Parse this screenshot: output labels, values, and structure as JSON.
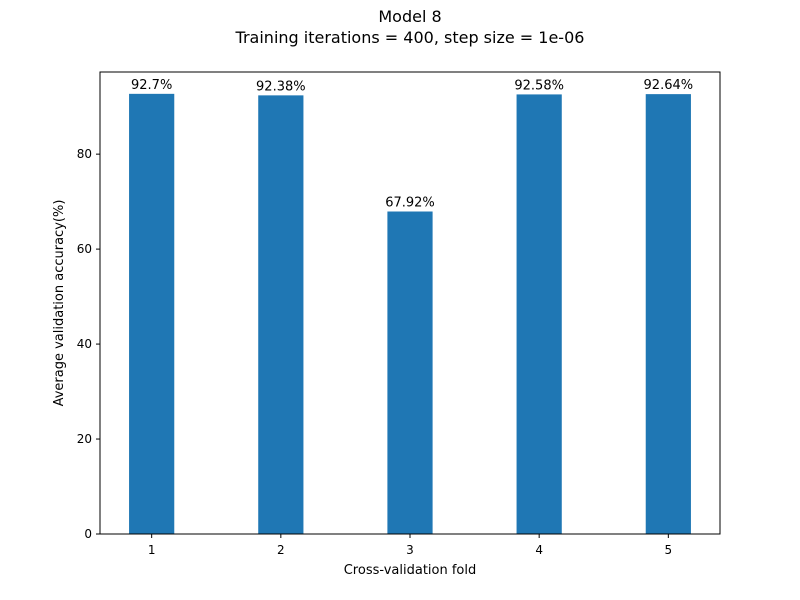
{
  "chart_data": {
    "type": "bar",
    "title": "Model 8",
    "subtitle": "Training iterations = 400, step size = 1e-06",
    "xlabel": "Cross-validation fold",
    "ylabel": "Average validation accuracy(%)",
    "categories": [
      "1",
      "2",
      "3",
      "4",
      "5"
    ],
    "values": [
      92.7,
      92.38,
      67.92,
      92.58,
      92.64
    ],
    "data_labels": [
      "92.7%",
      "92.38%",
      "67.92%",
      "92.58%",
      "92.64%"
    ],
    "ylim": [
      0,
      97.3
    ],
    "yticks": [
      0,
      20,
      40,
      60,
      80
    ],
    "ytick_labels": [
      "0",
      "20",
      "40",
      "60",
      "80"
    ],
    "grid": false,
    "bar_color": "#1f77b4"
  }
}
